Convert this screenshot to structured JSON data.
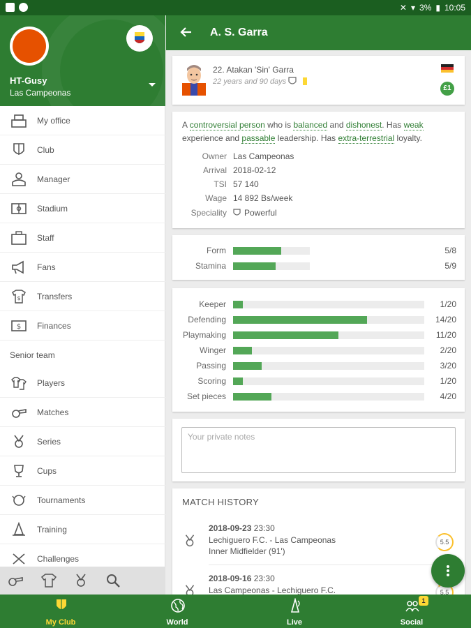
{
  "status_bar": {
    "battery": "3%",
    "time": "10:05"
  },
  "drawer": {
    "user": "HT-Gusy",
    "club": "Las Campeonas",
    "items": [
      {
        "label": "My office",
        "icon": "office-icon"
      },
      {
        "label": "Club",
        "icon": "club-shield-icon"
      },
      {
        "label": "Manager",
        "icon": "manager-icon"
      },
      {
        "label": "Stadium",
        "icon": "stadium-icon"
      },
      {
        "label": "Staff",
        "icon": "staff-icon"
      },
      {
        "label": "Fans",
        "icon": "megaphone-icon"
      },
      {
        "label": "Transfers",
        "icon": "transfers-icon"
      },
      {
        "label": "Finances",
        "icon": "finances-icon"
      }
    ],
    "section": "Senior team",
    "senior_items": [
      {
        "label": "Players",
        "icon": "players-icon"
      },
      {
        "label": "Matches",
        "icon": "whistle-icon"
      },
      {
        "label": "Series",
        "icon": "series-medal-icon"
      },
      {
        "label": "Cups",
        "icon": "cup-icon"
      },
      {
        "label": "Tournaments",
        "icon": "tournaments-icon"
      },
      {
        "label": "Training",
        "icon": "training-cone-icon"
      },
      {
        "label": "Challenges",
        "icon": "challenges-icon"
      }
    ],
    "bottom_icons": [
      "whistle-icon",
      "jersey-icon",
      "medal-icon",
      "search-icon"
    ]
  },
  "appbar": {
    "title": "A. S. Garra"
  },
  "player": {
    "name": "22. Atakan 'Sin' Garra",
    "age": "22 years and 90 days",
    "badge": "£1"
  },
  "info": {
    "d1": "A ",
    "controversial": "controversial person",
    "d2": " who is ",
    "balanced": "balanced",
    "d3": " and ",
    "dishonest": "dishonest",
    "d4": ". Has ",
    "weak": "weak",
    "d5": " experience and ",
    "passable": "passable",
    "d6": " leadership. Has ",
    "extraterrestrial": "extra-terrestrial",
    "d7": " loyalty.",
    "owner_k": "Owner",
    "owner_v": "Las Campeonas",
    "arrival_k": "Arrival",
    "arrival_v": "2018-02-12",
    "tsi_k": "TSI",
    "tsi_v": "57 140",
    "wage_k": "Wage",
    "wage_v": "14 892 Bs/week",
    "speciality_k": "Speciality",
    "speciality_v": "Powerful"
  },
  "condition": [
    {
      "label": "Form",
      "value": 5,
      "max": 8,
      "text": "5/8"
    },
    {
      "label": "Stamina",
      "value": 5,
      "max": 9,
      "text": "5/9"
    }
  ],
  "skills": [
    {
      "label": "Keeper",
      "value": 1,
      "max": 20,
      "text": "1/20"
    },
    {
      "label": "Defending",
      "value": 14,
      "max": 20,
      "text": "14/20"
    },
    {
      "label": "Playmaking",
      "value": 11,
      "max": 20,
      "text": "11/20"
    },
    {
      "label": "Winger",
      "value": 2,
      "max": 20,
      "text": "2/20"
    },
    {
      "label": "Passing",
      "value": 3,
      "max": 20,
      "text": "3/20"
    },
    {
      "label": "Scoring",
      "value": 1,
      "max": 20,
      "text": "1/20"
    },
    {
      "label": "Set pieces",
      "value": 4,
      "max": 20,
      "text": "4/20"
    }
  ],
  "notes": {
    "placeholder": "Your private notes"
  },
  "match_history": {
    "title": "MATCH HISTORY",
    "matches": [
      {
        "date": "2018-09-23",
        "time": "23:30",
        "home": "Lechiguero F.C.",
        "away": "Las Campeonas",
        "position": "Inner Midfielder (91')",
        "rating": "5.5"
      },
      {
        "date": "2018-09-16",
        "time": "23:30",
        "home": "Las Campeonas",
        "away": "Lechiguero F.C.",
        "position": "",
        "rating": "5.5"
      }
    ]
  },
  "bottom_nav": [
    {
      "label": "My Club",
      "icon": "shield-icon",
      "active": true
    },
    {
      "label": "World",
      "icon": "globe-icon"
    },
    {
      "label": "Live",
      "icon": "live-icon"
    },
    {
      "label": "Social",
      "icon": "social-icon",
      "badge": "1"
    }
  ],
  "colors": {
    "primary": "#2e7d32",
    "dark": "#1b5e20",
    "bar": "#43a047",
    "accent": "#fdd835"
  }
}
